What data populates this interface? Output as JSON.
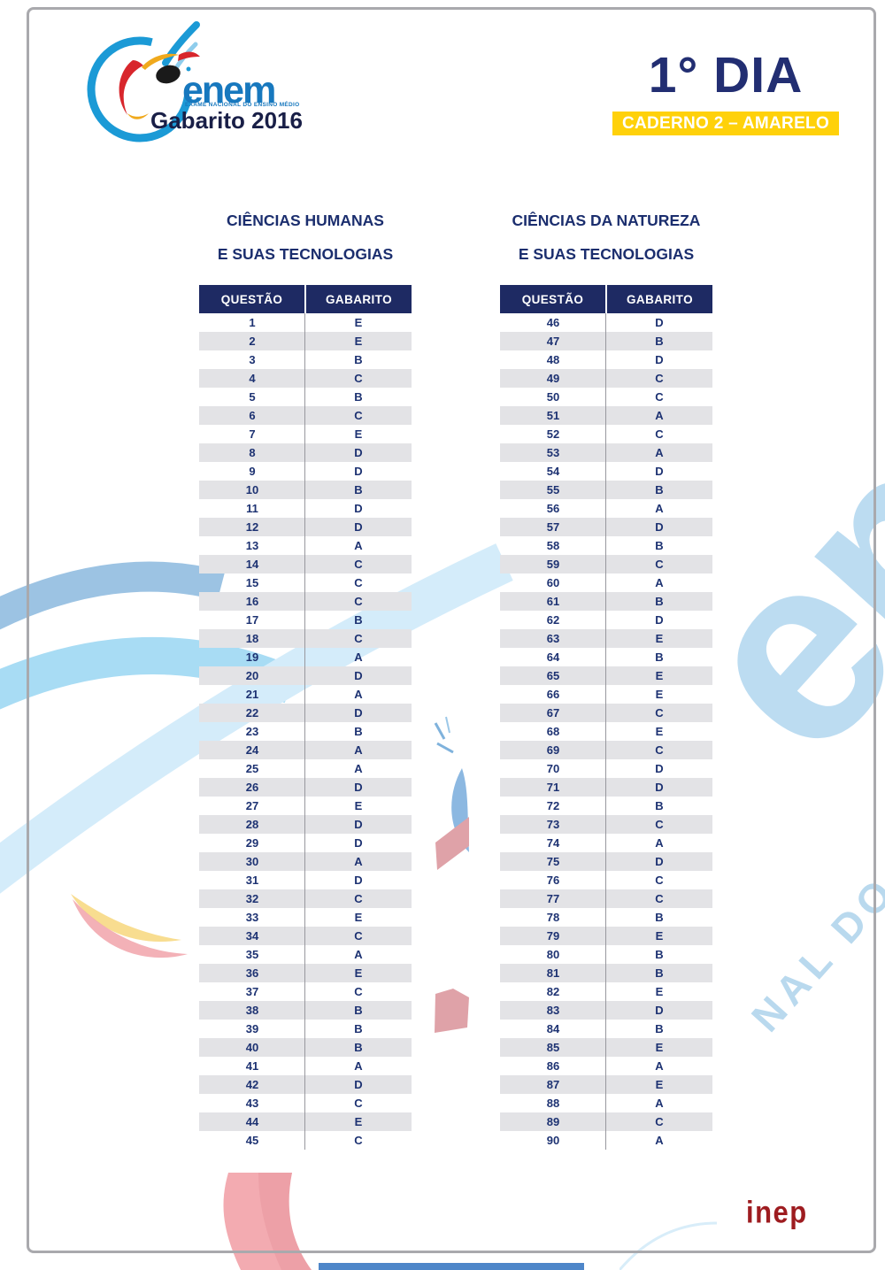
{
  "header": {
    "brand": "enem",
    "brand_tagline": "EXAME NACIONAL DO ENSINO MÉDIO",
    "edition": "Gabarito 2016",
    "day_title": "1° DIA",
    "booklet_badge": "CADERNO 2 – AMARELO"
  },
  "tables": [
    {
      "title_line1": "CIÊNCIAS HUMANAS",
      "title_line2": "E SUAS TECNOLOGIAS",
      "columns": {
        "question": "QUESTÃO",
        "answer": "GABARITO"
      },
      "rows": [
        [
          "1",
          "E"
        ],
        [
          "2",
          "E"
        ],
        [
          "3",
          "B"
        ],
        [
          "4",
          "C"
        ],
        [
          "5",
          "B"
        ],
        [
          "6",
          "C"
        ],
        [
          "7",
          "E"
        ],
        [
          "8",
          "D"
        ],
        [
          "9",
          "D"
        ],
        [
          "10",
          "B"
        ],
        [
          "11",
          "D"
        ],
        [
          "12",
          "D"
        ],
        [
          "13",
          "A"
        ],
        [
          "14",
          "C"
        ],
        [
          "15",
          "C"
        ],
        [
          "16",
          "C"
        ],
        [
          "17",
          "B"
        ],
        [
          "18",
          "C"
        ],
        [
          "19",
          "A"
        ],
        [
          "20",
          "D"
        ],
        [
          "21",
          "A"
        ],
        [
          "22",
          "D"
        ],
        [
          "23",
          "B"
        ],
        [
          "24",
          "A"
        ],
        [
          "25",
          "A"
        ],
        [
          "26",
          "D"
        ],
        [
          "27",
          "E"
        ],
        [
          "28",
          "D"
        ],
        [
          "29",
          "D"
        ],
        [
          "30",
          "A"
        ],
        [
          "31",
          "D"
        ],
        [
          "32",
          "C"
        ],
        [
          "33",
          "E"
        ],
        [
          "34",
          "C"
        ],
        [
          "35",
          "A"
        ],
        [
          "36",
          "E"
        ],
        [
          "37",
          "C"
        ],
        [
          "38",
          "B"
        ],
        [
          "39",
          "B"
        ],
        [
          "40",
          "B"
        ],
        [
          "41",
          "A"
        ],
        [
          "42",
          "D"
        ],
        [
          "43",
          "C"
        ],
        [
          "44",
          "E"
        ],
        [
          "45",
          "C"
        ]
      ]
    },
    {
      "title_line1": "CIÊNCIAS DA NATUREZA",
      "title_line2": "E SUAS TECNOLOGIAS",
      "columns": {
        "question": "QUESTÃO",
        "answer": "GABARITO"
      },
      "rows": [
        [
          "46",
          "D"
        ],
        [
          "47",
          "B"
        ],
        [
          "48",
          "D"
        ],
        [
          "49",
          "C"
        ],
        [
          "50",
          "C"
        ],
        [
          "51",
          "A"
        ],
        [
          "52",
          "C"
        ],
        [
          "53",
          "A"
        ],
        [
          "54",
          "D"
        ],
        [
          "55",
          "B"
        ],
        [
          "56",
          "A"
        ],
        [
          "57",
          "D"
        ],
        [
          "58",
          "B"
        ],
        [
          "59",
          "C"
        ],
        [
          "60",
          "A"
        ],
        [
          "61",
          "B"
        ],
        [
          "62",
          "D"
        ],
        [
          "63",
          "E"
        ],
        [
          "64",
          "B"
        ],
        [
          "65",
          "E"
        ],
        [
          "66",
          "E"
        ],
        [
          "67",
          "C"
        ],
        [
          "68",
          "E"
        ],
        [
          "69",
          "C"
        ],
        [
          "70",
          "D"
        ],
        [
          "71",
          "D"
        ],
        [
          "72",
          "B"
        ],
        [
          "73",
          "C"
        ],
        [
          "74",
          "A"
        ],
        [
          "75",
          "D"
        ],
        [
          "76",
          "C"
        ],
        [
          "77",
          "C"
        ],
        [
          "78",
          "B"
        ],
        [
          "79",
          "E"
        ],
        [
          "80",
          "B"
        ],
        [
          "81",
          "B"
        ],
        [
          "82",
          "E"
        ],
        [
          "83",
          "D"
        ],
        [
          "84",
          "B"
        ],
        [
          "85",
          "E"
        ],
        [
          "86",
          "A"
        ],
        [
          "87",
          "E"
        ],
        [
          "88",
          "A"
        ],
        [
          "89",
          "C"
        ],
        [
          "90",
          "A"
        ]
      ]
    }
  ],
  "watermark": {
    "big_text": "em",
    "diagonal_text": "NAL DO ENSI"
  },
  "footer": {
    "logo_text": "inep"
  },
  "colors": {
    "navy_text": "#1d3272",
    "table_header_bg": "#1e2a63",
    "row_alt_gray": "#e3e3e6",
    "badge_yellow": "#ffd10a",
    "badge_text": "#ffffff",
    "inep_red": "#9e1c20",
    "watermark_blue": "#bcdcf1",
    "logo_blue": "#1b9ad6",
    "logo_text_blue": "#1778be",
    "logo_red": "#d8262c",
    "logo_yellow": "#f0a91c"
  }
}
